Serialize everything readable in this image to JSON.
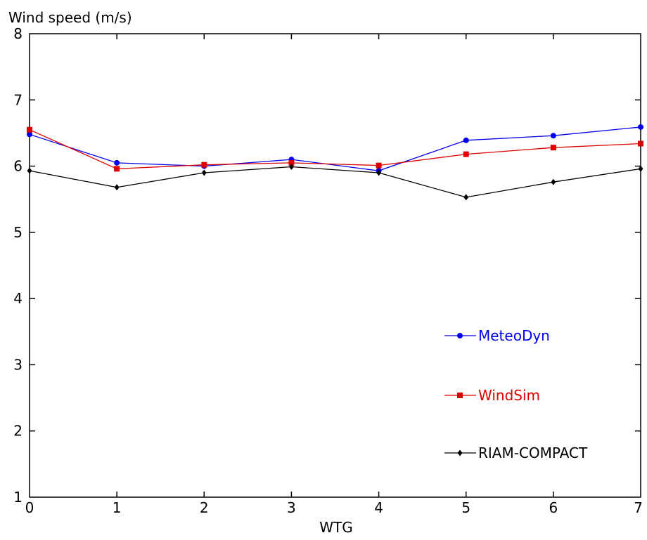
{
  "chart_data": {
    "type": "line",
    "title": "",
    "ylabel": "Wind speed (m/s)",
    "xlabel": "WTG",
    "xlim": [
      0,
      7
    ],
    "ylim": [
      1,
      8
    ],
    "x_ticks": [
      0,
      1,
      2,
      3,
      4,
      5,
      6,
      7
    ],
    "y_ticks": [
      1,
      2,
      3,
      4,
      5,
      6,
      7,
      8
    ],
    "grid": false,
    "legend_position": "right",
    "x": [
      0,
      1,
      2,
      3,
      4,
      5,
      6,
      7
    ],
    "series": [
      {
        "name": "MeteoDyn",
        "color": "#0000ee",
        "marker": "circle",
        "values": [
          6.48,
          6.05,
          6.0,
          6.1,
          5.93,
          6.39,
          6.46,
          6.59
        ]
      },
      {
        "name": "WindSim",
        "color": "#dd0000",
        "marker": "square",
        "values": [
          6.55,
          5.96,
          6.02,
          6.05,
          6.01,
          6.18,
          6.28,
          6.34
        ]
      },
      {
        "name": "RIAM-COMPACT",
        "color": "#000000",
        "marker": "diamond",
        "values": [
          5.93,
          5.68,
          5.9,
          5.99,
          5.9,
          5.53,
          5.76,
          5.96
        ]
      }
    ]
  }
}
